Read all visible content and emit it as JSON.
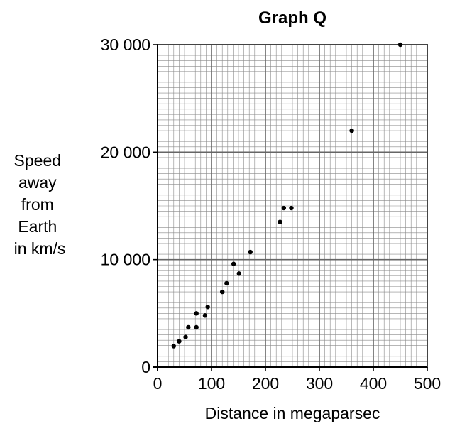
{
  "chart_data": {
    "type": "scatter",
    "title": "Graph Q",
    "xlabel": "Distance in megaparsec",
    "ylabel_lines": [
      "Speed",
      "away",
      "from",
      "Earth",
      "in km/s"
    ],
    "xlim": [
      0,
      500
    ],
    "ylim": [
      0,
      30000
    ],
    "x_ticks": [
      0,
      100,
      200,
      300,
      400,
      500
    ],
    "x_tick_labels": [
      "0",
      "100",
      "200",
      "300",
      "400",
      "500"
    ],
    "y_ticks": [
      0,
      10000,
      20000,
      30000
    ],
    "y_tick_labels": [
      "0",
      "10 000",
      "20 000",
      "30 000"
    ],
    "grid": true,
    "points": [
      {
        "x": 30,
        "y": 1950
      },
      {
        "x": 40,
        "y": 2400
      },
      {
        "x": 52,
        "y": 2800
      },
      {
        "x": 57,
        "y": 3700
      },
      {
        "x": 72,
        "y": 3700
      },
      {
        "x": 72,
        "y": 5000
      },
      {
        "x": 88,
        "y": 4800
      },
      {
        "x": 93,
        "y": 5600
      },
      {
        "x": 120,
        "y": 7000
      },
      {
        "x": 128,
        "y": 7800
      },
      {
        "x": 141,
        "y": 9600
      },
      {
        "x": 151,
        "y": 8700
      },
      {
        "x": 172,
        "y": 10700
      },
      {
        "x": 227,
        "y": 13500
      },
      {
        "x": 234,
        "y": 14800
      },
      {
        "x": 248,
        "y": 14800
      },
      {
        "x": 360,
        "y": 22000
      },
      {
        "x": 450,
        "y": 30000
      }
    ]
  }
}
